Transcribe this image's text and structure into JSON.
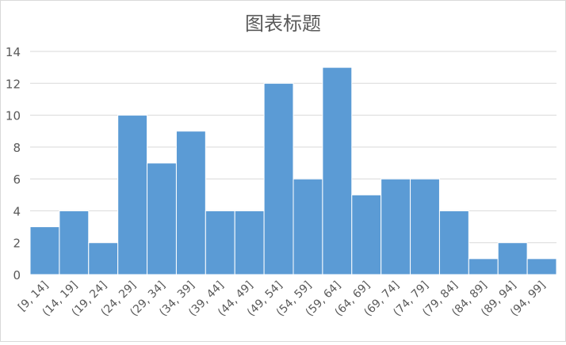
{
  "chart_data": {
    "type": "bar",
    "title": "图表标题",
    "xlabel": "",
    "ylabel": "",
    "categories": [
      "[9, 14]",
      "(14, 19]",
      "(19, 24]",
      "(24, 29]",
      "(29, 34]",
      "(34, 39]",
      "(39, 44]",
      "(44, 49]",
      "(49, 54]",
      "(54, 59]",
      "(59, 64]",
      "(64, 69]",
      "(69, 74]",
      "(74, 79]",
      "(79, 84]",
      "(84, 89]",
      "(89, 94]",
      "(94, 99]"
    ],
    "values": [
      3,
      4,
      2,
      10,
      7,
      9,
      4,
      4,
      12,
      6,
      13,
      5,
      6,
      6,
      4,
      1,
      2,
      1
    ],
    "ylim": [
      0,
      14
    ],
    "yticks": [
      0,
      2,
      4,
      6,
      8,
      10,
      12,
      14
    ],
    "grid": true,
    "legend": "none",
    "bar_color": "#5b9bd5"
  }
}
